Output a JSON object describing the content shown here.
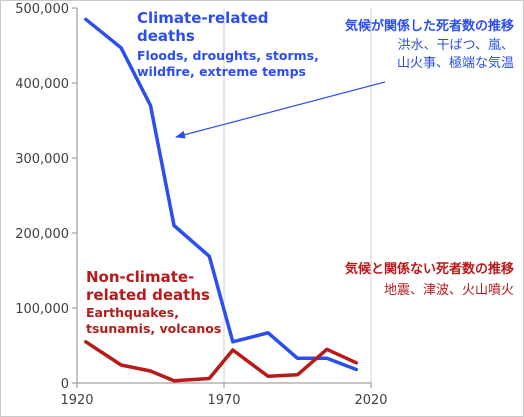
{
  "chart_data": {
    "type": "line",
    "x_ticks": [
      1920,
      1970,
      2020
    ],
    "y_ticks": [
      0,
      100000,
      200000,
      300000,
      400000,
      500000
    ],
    "x_tick_labels": [
      "1920",
      "1970",
      "2020"
    ],
    "y_tick_labels": [
      "0",
      "100,000",
      "200,000",
      "300,000",
      "400,000",
      "500,000"
    ],
    "xlim": [
      1920,
      2020
    ],
    "ylim": [
      0,
      500000
    ],
    "grid": "vertical-only",
    "series": [
      {
        "key": "climate",
        "color": "#2b4ef0",
        "x": [
          1923,
          1935,
          1945,
          1953,
          1965,
          1973,
          1985,
          1995,
          2005,
          2015
        ],
        "y": [
          485000,
          447000,
          370000,
          210000,
          169000,
          55000,
          67000,
          33000,
          33000,
          18000
        ]
      },
      {
        "key": "nonclimate",
        "color": "#b81a1a",
        "x": [
          1923,
          1935,
          1945,
          1953,
          1965,
          1973,
          1985,
          1995,
          2005,
          2015
        ],
        "y": [
          55000,
          24000,
          16000,
          3000,
          6000,
          44000,
          9000,
          11000,
          45000,
          27000
        ]
      }
    ]
  },
  "annotations": {
    "climate": {
      "color": "#2b4ef0",
      "title_lines": [
        "Climate-related",
        "deaths"
      ],
      "sub_lines": [
        "Floods, droughts, storms,",
        "wildfire, extreme temps"
      ]
    },
    "nonclimate": {
      "color": "#b81a1a",
      "title_lines": [
        "Non-climate-",
        "related deaths"
      ],
      "sub_lines": [
        "Earthquakes,",
        "tsunamis, volcanos"
      ]
    },
    "climate_jp": {
      "color": "#2b4ef0",
      "title": "気候が関係した死者数の推移",
      "sub_lines": [
        "洪水、干ばつ、嵐、",
        "山火事、極端な気温"
      ]
    },
    "nonclimate_jp": {
      "color": "#b81a1a",
      "title": "気候と関係ない死者数の推移",
      "sub_lines": [
        "地震、津波、火山噴火"
      ]
    }
  }
}
